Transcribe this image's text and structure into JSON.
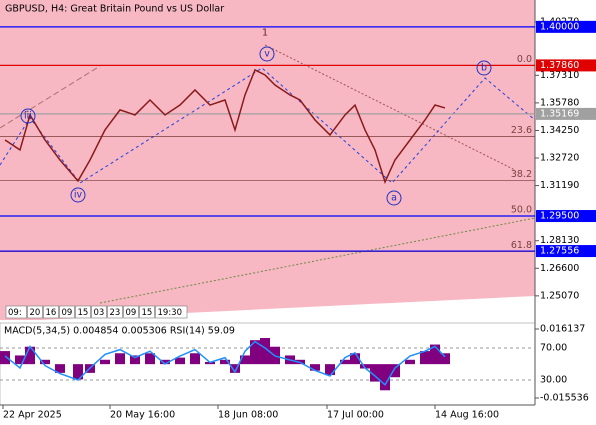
{
  "chart_data": [
    {
      "type": "price",
      "title": "GBPUSD, H4:  Great Britain Pound vs US Dollar",
      "x": [
        5,
        20,
        30,
        45,
        60,
        78,
        90,
        105,
        120,
        135,
        150,
        165,
        180,
        195,
        210,
        225,
        235,
        245,
        255,
        265,
        275,
        290,
        300,
        315,
        330,
        345,
        355,
        365,
        375,
        385,
        395,
        410,
        425,
        435,
        445
      ],
      "xlim": [
        0,
        535
      ],
      "xticks": [
        {
          "value": 3,
          "label": "22 Apr 2025"
        },
        {
          "value": 110,
          "label": "20 May 16:00"
        },
        {
          "value": 218,
          "label": "18 Jun 08:00"
        },
        {
          "value": 327,
          "label": "17 Jul 00:00"
        },
        {
          "value": 435,
          "label": "14 Aug 16:00"
        }
      ],
      "series": [
        {
          "name": "GBPUSD",
          "color": "#8b1a1a",
          "values": [
            1.3372,
            1.3317,
            1.3511,
            1.3372,
            1.3261,
            1.3145,
            1.3261,
            1.3428,
            1.3539,
            1.3511,
            1.3594,
            1.3511,
            1.3566,
            1.365,
            1.3566,
            1.3594,
            1.3428,
            1.3622,
            1.3761,
            1.3733,
            1.3677,
            1.3622,
            1.3594,
            1.3483,
            1.34,
            1.3511,
            1.3566,
            1.3428,
            1.3317,
            1.3139,
            1.3261,
            1.3372,
            1.3483,
            1.3566,
            1.355
          ]
        }
      ],
      "ylim": [
        1.2373,
        1.4149
      ],
      "yticks": [
        {
          "value": 1.4027,
          "label": "1.40270"
        },
        {
          "value": 1.3731,
          "label": "1.37310"
        },
        {
          "value": 1.3578,
          "label": "1.35780"
        },
        {
          "value": 1.3425,
          "label": "1.34250"
        },
        {
          "value": 1.3272,
          "label": "1.32720"
        },
        {
          "value": 1.3119,
          "label": "1.31190"
        },
        {
          "value": 1.2813,
          "label": "1.28130"
        },
        {
          "value": 1.266,
          "label": "1.26600"
        },
        {
          "value": 1.2507,
          "label": "1.25070"
        }
      ],
      "levels": [
        {
          "value": 1.4,
          "label": "1.40000",
          "color": "#0000ff"
        },
        {
          "value": 1.3786,
          "label": "1.37860",
          "color": "#e00000"
        },
        {
          "value": 1.35169,
          "label": "1.35169",
          "color": "#a0a0a0"
        },
        {
          "value": 1.295,
          "label": "1.29500",
          "color": "#0000ff"
        },
        {
          "value": 1.27556,
          "label": "1.27556",
          "color": "#0000ff"
        }
      ],
      "fib_levels": [
        {
          "value": 1.3786,
          "label": "0.0"
        },
        {
          "value": 1.3392,
          "label": "23.6"
        },
        {
          "value": 1.3147,
          "label": "38.2"
        },
        {
          "value": 1.295,
          "label": "50.0"
        },
        {
          "value": 1.2753,
          "label": "61.8"
        }
      ],
      "waves": [
        "iii",
        "iv",
        "v",
        "1",
        "a",
        "b"
      ],
      "time_boxes": [
        "09:",
        "20",
        "16",
        "09",
        "15",
        "03",
        "23",
        "09",
        "15",
        "19:30"
      ]
    },
    {
      "type": "macd",
      "title": "MACD(5,34,5) 0.004854 0.005306 RSI(14) 59.09",
      "x": [
        5,
        20,
        30,
        45,
        60,
        78,
        90,
        105,
        120,
        135,
        150,
        165,
        180,
        195,
        210,
        225,
        235,
        245,
        255,
        265,
        275,
        290,
        300,
        315,
        330,
        345,
        355,
        365,
        375,
        385,
        395,
        410,
        425,
        435,
        445
      ],
      "xlim": [
        0,
        535
      ],
      "ylim": [
        -0.01875,
        0.01889
      ],
      "yticks": [
        {
          "value": 0.016137,
          "label": "0.016137"
        },
        {
          "value": -0.015536,
          "label": "-0.015536"
        }
      ],
      "y2lim": [
        -1.25,
        101.25
      ],
      "y2ticks": [
        {
          "value": 70,
          "label": "70.00"
        },
        {
          "value": 30,
          "label": "30.00"
        }
      ],
      "series": [
        {
          "name": "MACD",
          "color": "#800080",
          "values": [
            0.006,
            0.004,
            0.008,
            0.002,
            -0.004,
            -0.007,
            -0.004,
            0.002,
            0.005,
            0.004,
            0.005,
            0.002,
            0.003,
            0.005,
            0.001,
            0.002,
            -0.004,
            0.004,
            0.011,
            0.012,
            0.008,
            0.004,
            0.002,
            -0.003,
            -0.005,
            0.002,
            0.005,
            -0.002,
            -0.008,
            -0.012,
            -0.006,
            0.002,
            0.006,
            0.009,
            0.005
          ]
        },
        {
          "name": "RSI",
          "color": "#1e90ff",
          "axis": "y2",
          "values": [
            60,
            45,
            72,
            48,
            38,
            30,
            45,
            62,
            68,
            58,
            66,
            50,
            60,
            68,
            52,
            58,
            40,
            66,
            78,
            70,
            60,
            55,
            52,
            42,
            35,
            58,
            64,
            45,
            35,
            24,
            45,
            60,
            66,
            72,
            59
          ]
        }
      ]
    }
  ]
}
